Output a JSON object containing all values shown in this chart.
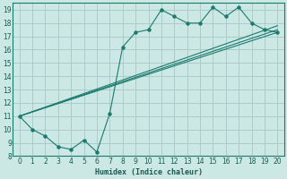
{
  "xlabel": "Humidex (Indice chaleur)",
  "bg_color": "#cce8e4",
  "grid_color": "#aaccca",
  "line_color": "#1a7a6e",
  "xlim": [
    -0.5,
    20.5
  ],
  "ylim": [
    8,
    19.5
  ],
  "xticks": [
    0,
    1,
    2,
    3,
    4,
    5,
    6,
    7,
    8,
    9,
    10,
    11,
    12,
    13,
    14,
    15,
    16,
    17,
    18,
    19,
    20
  ],
  "yticks": [
    8,
    9,
    10,
    11,
    12,
    13,
    14,
    15,
    16,
    17,
    18,
    19
  ],
  "line1_x": [
    0,
    1,
    2,
    3,
    4,
    5,
    6,
    7,
    8,
    9,
    10,
    11,
    12,
    13,
    14,
    15,
    16,
    17,
    18,
    19,
    20
  ],
  "line1_y": [
    11,
    10,
    9.5,
    8.7,
    8.5,
    9.2,
    8.3,
    11.2,
    16.2,
    17.3,
    17.5,
    19.0,
    18.5,
    18.0,
    18.0,
    19.2,
    18.5,
    19.2,
    18.0,
    17.5,
    17.3
  ],
  "line2_x": [
    0,
    20
  ],
  "line2_y": [
    11,
    17.3
  ],
  "line3_x": [
    0,
    20
  ],
  "line3_y": [
    11,
    17.5
  ],
  "line4_x": [
    0,
    20
  ],
  "line4_y": [
    11,
    17.8
  ]
}
